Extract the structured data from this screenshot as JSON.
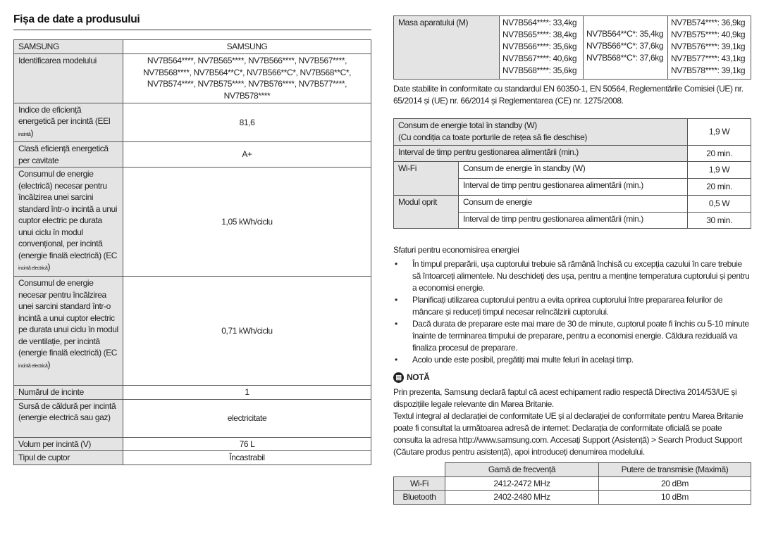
{
  "title": "Fișa de date a produsului",
  "left_table": [
    {
      "label": "SAMSUNG",
      "value": "SAMSUNG"
    },
    {
      "label": "Identificarea modelului",
      "value": "NV7B564****, NV7B565****, NV7B566****, NV7B567****, NV7B568****, NV7B564**C*, NV7B566**C*, NV7B568**C*, NV7B574****, NV7B575****, NV7B576****, NV7B577****, NV7B578****"
    },
    {
      "label": "Indice de eficiență energetică per incintă (EEI",
      "sub": "incintă",
      "label_end": ")",
      "value": "81,6"
    },
    {
      "label": "Clasă eficiență energetică per cavitate",
      "value": "A+"
    },
    {
      "label": "Consumul de energie (electrică) necesar pentru încălzirea unei sarcini standard într-o incintă a unui cuptor electric pe durata unui ciclu în modul convențional, per incintă (energie finală electrică) (EC",
      "sub": "incintă electrică",
      "label_end": ")",
      "value": "1,05 kWh/ciclu"
    },
    {
      "label": "Consumul de energie necesar pentru încălzirea unei sarcini standard într-o incintă a unui cuptor electric pe durata unui ciclu în modul de ventilație, per incintă (energie finală electrică) (EC",
      "sub": "incintă electrică",
      "label_end": ")",
      "value": "0,71 kWh/ciclu"
    },
    {
      "label": "Numărul de incinte",
      "value": "1"
    },
    {
      "label": "Sursă de căldură per incintă (energie electrică sau gaz)",
      "value": "electricitate"
    },
    {
      "label": "Volum per incintă (V)",
      "value": "76 L"
    },
    {
      "label": "Tipul de cuptor",
      "value": "Încastrabil"
    }
  ],
  "mass_table": {
    "label": "Masa aparatului (M)",
    "col1": [
      "NV7B564****: 33,4kg",
      "NV7B565****: 38,4kg",
      "NV7B566****: 35,6kg",
      "NV7B567****: 40,6kg",
      "NV7B568****: 35,6kg"
    ],
    "col2": [
      "NV7B564**C*: 35,4kg",
      "NV7B566**C*: 37,6kg",
      "NV7B568**C*: 37,6kg"
    ],
    "col3": [
      "NV7B574****: 36,9kg",
      "NV7B575****: 40,9kg",
      "NV7B576****: 39,1kg",
      "NV7B577****: 43,1kg",
      "NV7B578****: 39,1kg"
    ]
  },
  "standards_note": "Date stabilite în conformitate cu standardul EN 60350-1, EN 50564, Reglementările Comisiei (UE) nr. 65/2014 și (UE) nr. 66/2014 și Reglementarea (CE) nr. 1275/2008.",
  "standby_table": {
    "r1_label": "Consum de energie total în standby (W)",
    "r1_label2": "(Cu condiția ca toate porturile de rețea să fie deschise)",
    "r1_value": "1,9 W",
    "r2_label": "Interval de timp pentru gestionarea alimentării (min.)",
    "r2_value": "20 min.",
    "wifi": "Wi-Fi",
    "wifi_r1_label": "Consum de energie în standby (W)",
    "wifi_r1_value": "1,9 W",
    "wifi_r2_label": "Interval de timp pentru gestionarea alimentării (min.)",
    "wifi_r2_value": "20 min.",
    "off": "Modul oprit",
    "off_r1_label": "Consum de energie",
    "off_r1_value": "0,5 W",
    "off_r2_label": "Interval de timp pentru gestionarea alimentării (min.)",
    "off_r2_value": "30 min."
  },
  "tips": {
    "title": "Sfaturi pentru economisirea energiei",
    "items": [
      "În timpul preparării, ușa cuptorului trebuie să rămână închisă cu excepția cazului în care trebuie să întoarceți alimentele. Nu deschideți des ușa, pentru a menține temperatura cuptorului și pentru a economisi energie.",
      "Planificați utilizarea cuptorului pentru a evita oprirea cuptorului între prepararea felurilor de mâncare și reduceți timpul necesar reîncălzirii cuptorului.",
      "Dacă durata de preparare este mai mare de 30 de minute, cuptorul poate fi închis cu 5-10 minute înainte de terminarea timpului de preparare, pentru a economisi energie. Căldura reziduală va finaliza procesul de preparare.",
      "Acolo unde este posibil, pregătiți mai multe feluri în același timp."
    ]
  },
  "nota": {
    "icon": "note-icon",
    "title": "NOTĂ",
    "p1": "Prin prezenta, Samsung declară faptul că acest echipament radio respectă Directiva 2014/53/UE și dispozițiile legale relevante din Marea Britanie.",
    "p2": "Textul integral al declarației de conformitate UE și al declarației de conformitate pentru Marea Britanie poate fi consultat la următoarea adresă de internet: Declarația de conformitate oficială se poate consulta la adresa http://www.samsung.com. Accesați Support (Asistență) > Search Product Support (Căutare produs pentru asistență), apoi introduceți denumirea modelului."
  },
  "freq_table": {
    "headers": [
      "",
      "Gamă de frecvență",
      "Putere de transmisie (Maximă)"
    ],
    "rows": [
      [
        "Wi-Fi",
        "2412-2472 MHz",
        "20 dBm"
      ],
      [
        "Bluetooth",
        "2402-2480 MHz",
        "10 dBm"
      ]
    ]
  }
}
